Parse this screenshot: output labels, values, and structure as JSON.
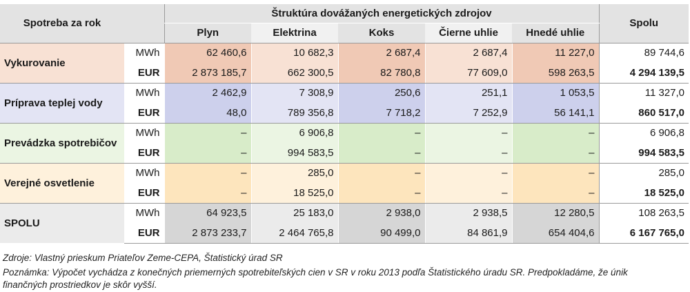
{
  "header": {
    "row_label": "Spotreba za rok",
    "group_title": "Štruktúra dovážaných energetických zdrojov",
    "columns": [
      "Plyn",
      "Elektrina",
      "Koks",
      "Čierne uhlie",
      "Hnedé uhlie"
    ],
    "total_label": "Spolu"
  },
  "rows": [
    {
      "label": "Vykurovanie",
      "colors": {
        "dark": "#f0c9b5",
        "light": "#f8e1d4"
      },
      "mwh": {
        "unit": "MWh",
        "values": [
          "62 460,6",
          "10 682,3",
          "2 687,4",
          "2 687,4",
          "11 227,0"
        ],
        "total": "89 744,6"
      },
      "eur": {
        "unit": "EUR",
        "values": [
          "2 873 185,7",
          "662 300,5",
          "82 780,8",
          "77 609,0",
          "598 263,5"
        ],
        "total": "4 294 139,5"
      }
    },
    {
      "label": "Príprava teplej vody",
      "colors": {
        "dark": "#cdd0ec",
        "light": "#e3e4f4"
      },
      "mwh": {
        "unit": "MWh",
        "values": [
          "2 462,9",
          "7 308,9",
          "250,6",
          "251,1",
          "1 053,5"
        ],
        "total": "11 327,0"
      },
      "eur": {
        "unit": "EUR",
        "values": [
          "48,0",
          "789 356,8",
          "7 718,2",
          "7 252,9",
          "56 141,1"
        ],
        "total": "860 517,0"
      }
    },
    {
      "label": "Prevádzka spotrebičov",
      "colors": {
        "dark": "#d8ecc9",
        "light": "#ebf5e3"
      },
      "mwh": {
        "unit": "MWh",
        "values": [
          "–",
          "6 906,8",
          "–",
          "–",
          "–"
        ],
        "total": "6 906,8"
      },
      "eur": {
        "unit": "EUR",
        "values": [
          "–",
          "994 583,5",
          "–",
          "–",
          "–"
        ],
        "total": "994 583,5"
      }
    },
    {
      "label": "Verejné osvetlenie",
      "colors": {
        "dark": "#fde5bd",
        "light": "#fef1dc"
      },
      "mwh": {
        "unit": "MWh",
        "values": [
          "–",
          "285,0",
          "–",
          "–",
          "–"
        ],
        "total": "285,0"
      },
      "eur": {
        "unit": "EUR",
        "values": [
          "–",
          "18 525,0",
          "–",
          "–",
          "–"
        ],
        "total": "18 525,0"
      }
    },
    {
      "label": "SPOLU",
      "colors": {
        "dark": "#d6d6d6",
        "light": "#ebebeb"
      },
      "mwh": {
        "unit": "MWh",
        "values": [
          "64 923,5",
          "25 183,0",
          "2 938,0",
          "2 938,5",
          "12 280,5"
        ],
        "total": "108 263,5"
      },
      "eur": {
        "unit": "EUR",
        "values": [
          "2 873 233,7",
          "2 464 765,8",
          "90 499,0",
          "84 861,9",
          "654 404,6"
        ],
        "total": "6 167 765,0"
      }
    }
  ],
  "footnotes": {
    "source": "Zdroje: Vlastný prieskum Priateľov Zeme-CEPA, Štatistický úrad SR",
    "note_line1": "Poznámka: Výpočet vychádza z konečných priemerných spotrebiteľských cien v SR v roku 2013 podľa Štatistického úradu SR. Predpokladáme, že únik",
    "note_line2": "finančných prostriedkov je skôr vyšší."
  }
}
